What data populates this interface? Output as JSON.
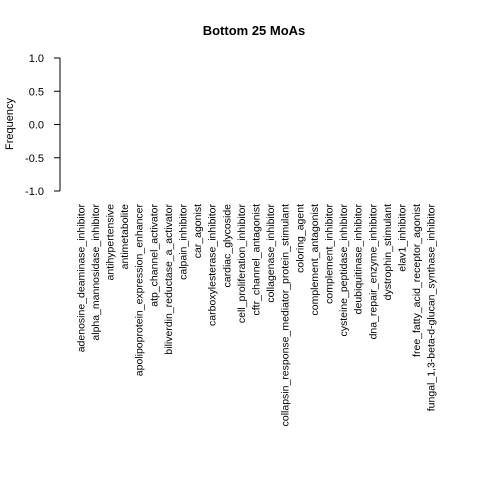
{
  "chart_data": {
    "type": "bar",
    "title": "Bottom 25 MoAs",
    "xlabel": "",
    "ylabel": "Frequency",
    "ylim": [
      -1.0,
      1.0
    ],
    "yticks": [
      "-1.0",
      "-0.5",
      "0.0",
      "0.5",
      "1.0"
    ],
    "ytick_values": [
      -1.0,
      -0.5,
      0.0,
      0.5,
      1.0
    ],
    "categories": [
      "adenosine_deaminase_inhibitor",
      "alpha_mannosidase_inhibitor",
      "antihypertensive",
      "antimetabolite",
      "apolipoprotein_expression_enhancer",
      "atp_channel_activator",
      "biliverdin_reductase_a_activator",
      "calpain_inhibitor",
      "car_agonist",
      "carboxylesterase_inhibitor",
      "cardiac_glycoside",
      "cell_proliferation_inhibitor",
      "cftr_channel_antagonist",
      "collagenase_inhibitor",
      "collapsin_response_mediator_protein_stimulant",
      "coloring_agent",
      "complement_antagonist",
      "complement_inhibitor",
      "cysteine_peptidase_inhibitor",
      "deubiquitinase_inhibitor",
      "dna_repair_enzyme_inhibitor",
      "dystrophin_stimulant",
      "elav1_inhibitor",
      "free_fatty_acid_receptor_agonist",
      "fungal_1,3-beta-d-glucan_synthase_inhibitor"
    ],
    "values": [
      0,
      0,
      0,
      0,
      0,
      0,
      0,
      0,
      0,
      0,
      0,
      0,
      0,
      0,
      0,
      0,
      0,
      0,
      0,
      0,
      0,
      0,
      0,
      0,
      0
    ],
    "grid": false,
    "legend": "none"
  }
}
